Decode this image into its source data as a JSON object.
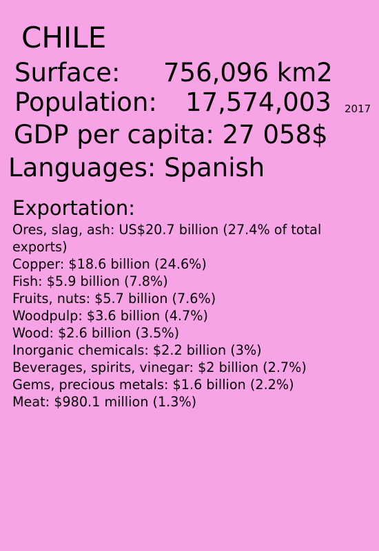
{
  "country": "CHILE",
  "surface": {
    "label": "Surface:",
    "value": "756,096 km2"
  },
  "population": {
    "label": "Population:",
    "value": "17,574,003",
    "year": "2017"
  },
  "gdp": {
    "text": "GDP per capita: 27 058$"
  },
  "languages": {
    "text": "Languages: Spanish"
  },
  "exportation": {
    "heading": "Exportation:",
    "items": [
      "Ores, slag, ash: US$20.7 billion (27.4% of total exports)",
      "Copper: $18.6 billion (24.6%)",
      "Fish: $5.9 billion (7.8%)",
      "Fruits, nuts: $5.7 billion (7.6%)",
      "Woodpulp: $3.6 billion (4.7%)",
      "Wood: $2.6 billion (3.5%)",
      "Inorganic chemicals: $2.2 billion (3%)",
      "Beverages, spirits, vinegar: $2 billion (2.7%)",
      "Gems, precious metals: $1.6 billion (2.2%)",
      "Meat: $980.1 million (1.3%)"
    ]
  },
  "colors": {
    "background": "#f6a4e6",
    "text": "#000000"
  }
}
